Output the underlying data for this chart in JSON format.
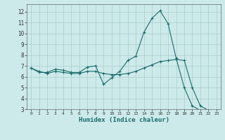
{
  "title": "",
  "xlabel": "Humidex (Indice chaleur)",
  "bg_color": "#cceaea",
  "grid_color": "#b0d0d0",
  "line_color": "#1a6b6b",
  "xlim": [
    -0.5,
    23.5
  ],
  "ylim": [
    3,
    12.7
  ],
  "xticks": [
    0,
    1,
    2,
    3,
    4,
    5,
    6,
    7,
    8,
    9,
    10,
    11,
    12,
    13,
    14,
    15,
    16,
    17,
    18,
    19,
    20,
    21,
    22,
    23
  ],
  "yticks": [
    3,
    4,
    5,
    6,
    7,
    8,
    9,
    10,
    11,
    12
  ],
  "series1_x": [
    0,
    1,
    2,
    3,
    4,
    5,
    6,
    7,
    8,
    9,
    10,
    11,
    12,
    13,
    14,
    15,
    16,
    17,
    18,
    19,
    20,
    21,
    22
  ],
  "series1_y": [
    6.8,
    6.4,
    6.4,
    6.7,
    6.6,
    6.4,
    6.4,
    6.9,
    7.0,
    5.3,
    5.9,
    6.5,
    7.5,
    7.9,
    10.1,
    11.4,
    12.1,
    10.9,
    7.7,
    5.0,
    3.3,
    2.9,
    2.9
  ],
  "series2_x": [
    0,
    1,
    2,
    3,
    4,
    5,
    6,
    7,
    8,
    9,
    10,
    11,
    12,
    13,
    14,
    15,
    16,
    17,
    18,
    19,
    20,
    21,
    22,
    23
  ],
  "series2_y": [
    6.8,
    6.5,
    6.3,
    6.5,
    6.4,
    6.3,
    6.3,
    6.5,
    6.5,
    6.3,
    6.2,
    6.2,
    6.3,
    6.5,
    6.8,
    7.1,
    7.4,
    7.5,
    7.6,
    7.5,
    5.0,
    3.3,
    2.9,
    2.9
  ]
}
